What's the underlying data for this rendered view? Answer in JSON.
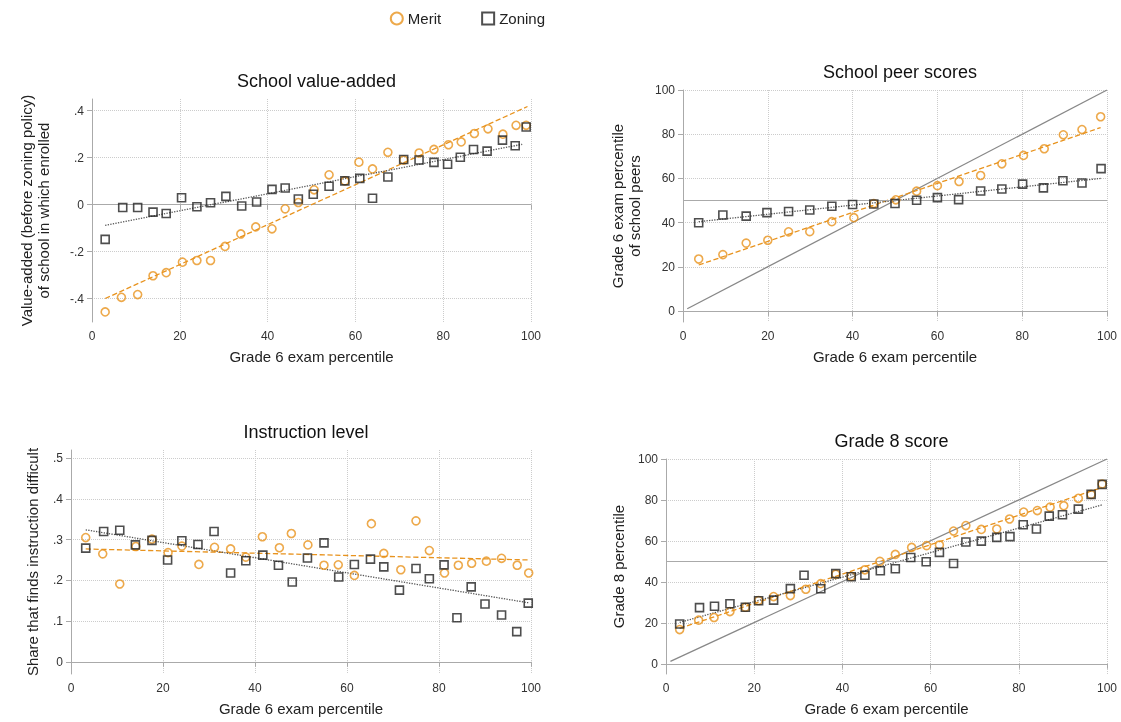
{
  "chart_data": [
    {
      "type": "scatter",
      "title": "School value-added",
      "xlabel": "Grade 6 exam percentile",
      "ylabel": "Value-added (before zoning policy)\nof school in which enrolled",
      "xlim": [
        0,
        100
      ],
      "xticks": [
        0,
        20,
        40,
        60,
        80,
        100
      ],
      "ylim": [
        -0.5,
        0.45
      ],
      "yticks": [
        {
          "value": -0.4,
          "label": "-.4"
        },
        {
          "value": -0.2,
          "label": "-.2"
        },
        0,
        {
          "value": 0.2,
          "label": ".2"
        },
        {
          "value": 0.4,
          "label": ".4"
        }
      ],
      "grid": true,
      "legend": "top",
      "series": [
        {
          "name": "Merit",
          "marker": "circle",
          "color": "#e8931e",
          "x": [
            3.0,
            6.7,
            10.4,
            13.9,
            16.9,
            20.6,
            23.9,
            27.0,
            30.3,
            33.9,
            37.3,
            41.0,
            44.0,
            47.0,
            50.6,
            54.0,
            57.6,
            60.8,
            63.9,
            67.4,
            71.0,
            74.5,
            77.9,
            81.2,
            84.1,
            87.1,
            90.2,
            93.6,
            96.6,
            98.9
          ],
          "values": [
            -0.457,
            -0.395,
            -0.383,
            -0.303,
            -0.29,
            -0.245,
            -0.238,
            -0.238,
            -0.178,
            -0.125,
            -0.095,
            -0.103,
            -0.018,
            0.009,
            0.063,
            0.127,
            0.101,
            0.181,
            0.152,
            0.223,
            0.19,
            0.22,
            0.235,
            0.255,
            0.267,
            0.303,
            0.323,
            0.3,
            0.338,
            0.338
          ]
        },
        {
          "name": "Zoning",
          "marker": "square",
          "color": "#222222",
          "x": [
            3.0,
            7.0,
            10.4,
            13.9,
            16.9,
            20.4,
            23.9,
            27.0,
            30.5,
            34.1,
            37.5,
            41.0,
            44.0,
            47.0,
            50.4,
            54.0,
            57.6,
            61.0,
            63.9,
            67.4,
            71.0,
            74.5,
            77.9,
            81.0,
            83.9,
            86.9,
            90.0,
            93.5,
            96.4,
            98.9
          ],
          "values": [
            -0.148,
            -0.012,
            -0.012,
            -0.032,
            -0.038,
            0.029,
            -0.009,
            0.008,
            0.035,
            -0.006,
            0.011,
            0.065,
            0.071,
            0.024,
            0.044,
            0.078,
            0.101,
            0.112,
            0.027,
            0.118,
            0.192,
            0.19,
            0.18,
            0.172,
            0.202,
            0.235,
            0.228,
            0.275,
            0.251,
            0.331
          ]
        },
        {
          "type": "line",
          "marker": "none",
          "line_style": "dashed",
          "color": "#e8931e",
          "x": [
            3.0,
            99.2
          ],
          "values": [
            -0.4,
            0.418
          ]
        },
        {
          "type": "line",
          "marker": "none",
          "line_style": "dotted",
          "color": "#555555",
          "x": [
            3.0,
            98.0
          ],
          "values": [
            -0.088,
            0.257
          ]
        }
      ]
    },
    {
      "type": "scatter",
      "title": "School peer scores",
      "xlabel": "Grade 6 exam percentile",
      "ylabel": "Grade 6 exam percentile\nof school peers",
      "xlim": [
        0,
        100
      ],
      "xticks": [
        0,
        20,
        40,
        60,
        80,
        100
      ],
      "ylim": [
        -5,
        100
      ],
      "yticks": [
        0,
        20,
        40,
        60,
        80,
        100
      ],
      "grid": true,
      "ref_lines": [
        {
          "axis": "y",
          "value": 50,
          "color": "#aaaaaa"
        }
      ],
      "series": [
        {
          "marker": "circle",
          "color": "#e8931e",
          "x": [
            3.7,
            9.4,
            14.9,
            20.0,
            24.9,
            29.9,
            35.1,
            40.3,
            45.0,
            50.2,
            55.1,
            60.0,
            65.1,
            70.2,
            75.2,
            80.3,
            85.2,
            89.7,
            94.1,
            98.5
          ],
          "values": [
            23.5,
            25.5,
            30.7,
            32.0,
            35.8,
            35.9,
            40.4,
            42.2,
            48.6,
            50.3,
            54.2,
            56.7,
            58.6,
            61.3,
            66.6,
            70.4,
            73.4,
            79.7,
            82.1,
            87.9
          ]
        },
        {
          "marker": "square",
          "color": "#222222",
          "x": [
            3.7,
            9.4,
            14.9,
            19.8,
            24.9,
            29.9,
            35.1,
            40.0,
            45.0,
            50.0,
            55.1,
            60.0,
            65.0,
            70.2,
            75.2,
            80.1,
            85.0,
            89.6,
            94.1,
            98.6
          ],
          "values": [
            39.9,
            43.4,
            42.9,
            44.5,
            45.0,
            45.7,
            47.4,
            48.2,
            48.4,
            48.6,
            50.1,
            51.3,
            50.4,
            54.3,
            55.2,
            57.4,
            55.7,
            58.9,
            57.9,
            64.4
          ]
        },
        {
          "type": "line",
          "marker": "none",
          "line_style": "solid",
          "color": "#888888",
          "x": [
            1,
            100
          ],
          "values": [
            1,
            100
          ]
        },
        {
          "type": "line",
          "marker": "none",
          "line_style": "dashed",
          "color": "#e8931e",
          "x": [
            3.7,
            98.5
          ],
          "values": [
            20.8,
            83.0
          ]
        },
        {
          "type": "line",
          "marker": "none",
          "line_style": "dotted",
          "color": "#555555",
          "x": [
            3.7,
            98.6
          ],
          "values": [
            40.4,
            60.0
          ]
        }
      ]
    },
    {
      "type": "scatter",
      "title": "Instruction level",
      "xlabel": "Grade 6 exam percentile",
      "ylabel": "Share that finds instruction difficult",
      "xlim": [
        0,
        100
      ],
      "xticks": [
        0,
        20,
        40,
        60,
        80,
        100
      ],
      "ylim": [
        -0.03,
        0.52
      ],
      "yticks": [
        0,
        {
          "value": 0.1,
          "label": ".1"
        },
        {
          "value": 0.2,
          "label": ".2"
        },
        {
          "value": 0.3,
          "label": ".3"
        },
        {
          "value": 0.4,
          "label": ".4"
        },
        {
          "value": 0.5,
          "label": ".5"
        }
      ],
      "grid": true,
      "series": [
        {
          "marker": "circle",
          "color": "#e8931e",
          "x": [
            3.2,
            6.9,
            10.6,
            14.1,
            17.6,
            21.1,
            24.1,
            27.8,
            31.2,
            34.7,
            38.0,
            41.6,
            45.3,
            47.9,
            51.5,
            55.0,
            58.1,
            61.6,
            65.3,
            68.0,
            71.7,
            75.0,
            77.9,
            81.2,
            84.2,
            87.1,
            90.3,
            93.6,
            97.0,
            99.5
          ],
          "values": [
            0.305,
            0.265,
            0.191,
            0.283,
            0.301,
            0.268,
            0.284,
            0.239,
            0.281,
            0.277,
            0.257,
            0.307,
            0.28,
            0.315,
            0.287,
            0.237,
            0.238,
            0.212,
            0.339,
            0.266,
            0.226,
            0.346,
            0.273,
            0.218,
            0.237,
            0.242,
            0.247,
            0.254,
            0.237,
            0.218
          ]
        },
        {
          "marker": "square",
          "color": "#222222",
          "x": [
            3.2,
            7.1,
            10.6,
            14.0,
            17.6,
            21.0,
            24.1,
            27.6,
            31.1,
            34.7,
            38.0,
            41.7,
            45.1,
            48.1,
            51.4,
            55.0,
            58.2,
            61.6,
            65.1,
            68.0,
            71.4,
            75.0,
            77.9,
            81.1,
            83.9,
            87.0,
            90.0,
            93.6,
            96.9,
            99.4
          ],
          "values": [
            0.279,
            0.32,
            0.323,
            0.287,
            0.298,
            0.25,
            0.297,
            0.288,
            0.32,
            0.218,
            0.248,
            0.262,
            0.237,
            0.196,
            0.255,
            0.292,
            0.208,
            0.239,
            0.252,
            0.233,
            0.176,
            0.229,
            0.204,
            0.238,
            0.108,
            0.184,
            0.142,
            0.115,
            0.074,
            0.144
          ]
        },
        {
          "type": "line",
          "marker": "none",
          "line_style": "dashed",
          "color": "#e8931e",
          "x": [
            3.2,
            99.5
          ],
          "values": [
            0.277,
            0.25
          ]
        },
        {
          "type": "line",
          "marker": "none",
          "line_style": "dotted",
          "color": "#555555",
          "x": [
            3.2,
            99.4
          ],
          "values": [
            0.324,
            0.145
          ]
        }
      ]
    },
    {
      "type": "scatter",
      "title": "Grade 8 score",
      "xlabel": "Grade 6 exam percentile",
      "ylabel": "Grade 8 percentile",
      "xlim": [
        0,
        100
      ],
      "xticks": [
        0,
        20,
        40,
        60,
        80,
        100
      ],
      "ylim": [
        -5,
        100
      ],
      "yticks": [
        0,
        20,
        40,
        60,
        80,
        100
      ],
      "grid": true,
      "ref_lines": [
        {
          "axis": "y",
          "value": 50,
          "color": "#aaaaaa"
        }
      ],
      "series": [
        {
          "marker": "circle",
          "color": "#e8931e",
          "x": [
            3.1,
            7.4,
            10.9,
            14.5,
            18.0,
            21.0,
            24.4,
            28.2,
            31.7,
            35.1,
            38.5,
            42.0,
            45.1,
            48.5,
            52.0,
            55.7,
            59.1,
            62.0,
            65.2,
            68.0,
            71.5,
            75.0,
            77.9,
            81.1,
            84.2,
            87.1,
            90.2,
            93.5,
            96.4,
            98.9
          ],
          "values": [
            16.7,
            21.3,
            22.6,
            25.5,
            27.6,
            30.9,
            32.8,
            33.3,
            36.4,
            39.1,
            43.7,
            42.7,
            45.9,
            50.0,
            53.4,
            56.8,
            57.7,
            58.0,
            64.8,
            67.5,
            65.6,
            65.8,
            70.7,
            74.1,
            74.8,
            76.5,
            77.2,
            80.8,
            82.7,
            87.8
          ]
        },
        {
          "marker": "square",
          "color": "#222222",
          "x": [
            3.1,
            7.6,
            11.0,
            14.5,
            18.0,
            21.0,
            24.4,
            28.2,
            31.3,
            35.1,
            38.5,
            42.0,
            45.1,
            48.6,
            52.0,
            55.5,
            59.0,
            62.0,
            65.2,
            68.0,
            71.5,
            75.0,
            78.0,
            81.0,
            84.0,
            86.9,
            89.9,
            93.5,
            96.4,
            98.9
          ],
          "values": [
            19.4,
            27.4,
            28.1,
            29.3,
            27.6,
            30.8,
            31.1,
            36.7,
            43.2,
            36.6,
            44.0,
            42.5,
            43.2,
            45.4,
            46.4,
            51.9,
            49.8,
            54.4,
            49.0,
            59.5,
            59.9,
            61.7,
            62.1,
            67.9,
            65.8,
            72.1,
            72.8,
            75.5,
            82.7,
            87.6
          ]
        },
        {
          "type": "line",
          "marker": "none",
          "line_style": "solid",
          "color": "#888888",
          "x": [
            1,
            100
          ],
          "values": [
            1.2,
            100
          ]
        },
        {
          "type": "line",
          "marker": "none",
          "line_style": "dashed",
          "color": "#e8931e",
          "x": [
            3.1,
            98.9
          ],
          "values": [
            17.3,
            86.1
          ]
        },
        {
          "type": "line",
          "marker": "none",
          "line_style": "dotted",
          "color": "#555555",
          "x": [
            3.1,
            98.9
          ],
          "values": [
            20.2,
            77.6
          ]
        }
      ]
    }
  ]
}
